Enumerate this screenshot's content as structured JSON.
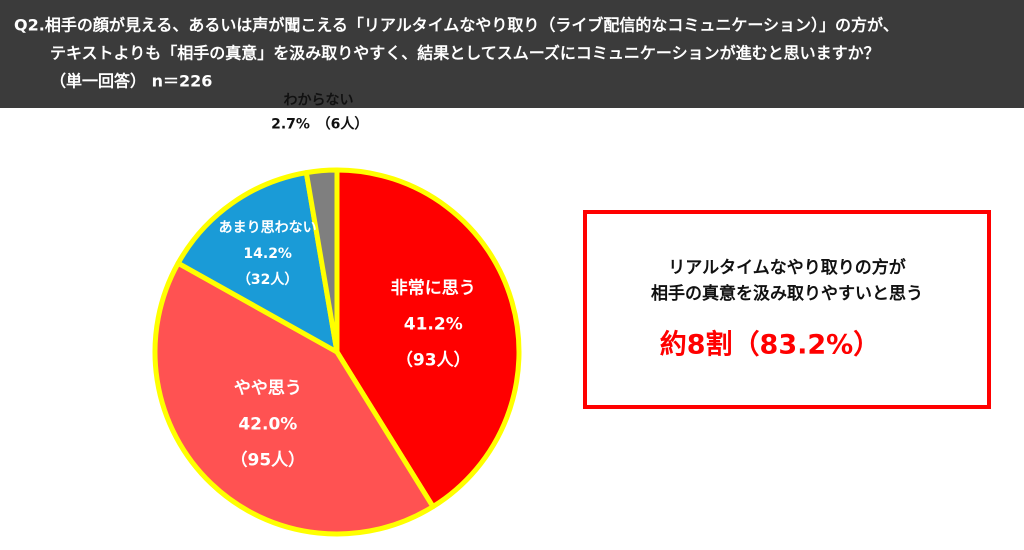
{
  "chart_data": {
    "type": "pie",
    "title": [
      "Q2.相手の顔が見える、あるいは声が聞こえる「リアルタイムなやり取り（ライブ配信的なコミュニケーション）」の方が、",
      "テキストよりも「相手の真意」を汲み取りやすく、結果としてスムーズにコミュニケーションが進むと思いますか？",
      "（単一回答） n＝226"
    ],
    "categories": [
      "非常に思う",
      "やや思う",
      "あまり思わない",
      "わからない"
    ],
    "values": [
      41.2,
      42.0,
      14.2,
      2.7
    ],
    "value_labels": [
      "41.2%",
      "42.0%",
      "14.2%",
      "2.7%"
    ],
    "count_labels": [
      "（93人）",
      "（95人）",
      "（32人）",
      "（6人）"
    ],
    "colors": [
      "#ff0000",
      "#ff5252",
      "#1a9bd7",
      "#7f7f7f"
    ]
  },
  "callout": {
    "lines": [
      "リアルタイムなやり取りの方が",
      "相手の真意を汲み取りやすいと思う"
    ],
    "highlight": "約8割（83.2%）"
  }
}
